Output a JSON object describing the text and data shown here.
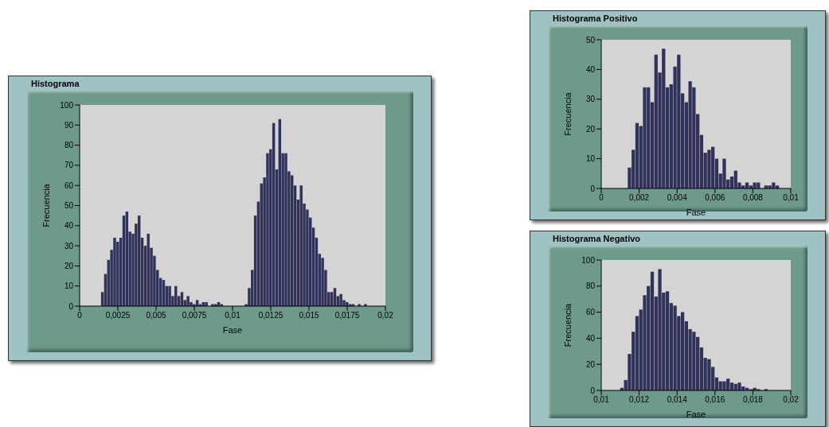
{
  "chart_data": [
    {
      "type": "histogram",
      "title": "Histograma",
      "xlabel": "Fase",
      "ylabel": "Frecuencia",
      "color": "#31325a",
      "bins": [
        0.0014,
        0.0016,
        0.0018,
        0.002,
        0.0022,
        0.0024,
        0.0026,
        0.0028,
        0.003,
        0.0032,
        0.0034,
        0.0036,
        0.0038,
        0.004,
        0.0042,
        0.0044,
        0.0046,
        0.0048,
        0.005,
        0.0052,
        0.0054,
        0.0056,
        0.0058,
        0.006,
        0.0062,
        0.0064,
        0.0066,
        0.0068,
        0.007,
        0.0072,
        0.0074,
        0.0076,
        0.0078,
        0.008,
        0.0082,
        0.0084,
        0.0086,
        0.0088,
        0.009,
        0.0092,
        0.0094,
        0.0096,
        0.0098,
        0.01,
        0.0102,
        0.0104,
        0.0106,
        0.0108,
        0.011,
        0.0112,
        0.0114,
        0.0116,
        0.0118,
        0.012,
        0.0122,
        0.0124,
        0.0126,
        0.0128,
        0.013,
        0.0132,
        0.0134,
        0.0136,
        0.0138,
        0.014,
        0.0142,
        0.0144,
        0.0146,
        0.0148,
        0.015,
        0.0152,
        0.0154,
        0.0156,
        0.0158,
        0.016,
        0.0162,
        0.0164,
        0.0166,
        0.0168,
        0.017,
        0.0172,
        0.0174,
        0.0176,
        0.0178,
        0.018,
        0.0182,
        0.0184,
        0.0186,
        0.0188
      ],
      "values": [
        7,
        16,
        23,
        28,
        34,
        32,
        34,
        45,
        47,
        37,
        36,
        41,
        45,
        34,
        30,
        36,
        29,
        25,
        18,
        14,
        13,
        10,
        10,
        5,
        10,
        5,
        7,
        3,
        5,
        2,
        1,
        3,
        1,
        2,
        2,
        0,
        1,
        1,
        2,
        1,
        0,
        0,
        0,
        0,
        0,
        0,
        0,
        1,
        9,
        18,
        45,
        52,
        61,
        64,
        76,
        78,
        91,
        68,
        93,
        76,
        76,
        67,
        65,
        60,
        53,
        60,
        51,
        48,
        44,
        39,
        34,
        26,
        24,
        18,
        7,
        7,
        9,
        5,
        6,
        3,
        2,
        1,
        1,
        0,
        1,
        0,
        1
      ],
      "xlim": [
        0,
        0.02
      ],
      "xticks": [
        0,
        {
          "value": 0.0025,
          "label": "0,0025"
        },
        {
          "value": 0.005,
          "label": "0,005"
        },
        {
          "value": 0.0075,
          "label": "0,0075"
        },
        {
          "value": 0.01,
          "label": "0,01"
        },
        {
          "value": 0.0125,
          "label": "0,0125"
        },
        {
          "value": 0.015,
          "label": "0,015"
        },
        {
          "value": 0.0175,
          "label": "0,0175"
        },
        {
          "value": 0.02,
          "label": "0,02"
        }
      ],
      "ylim": [
        0,
        100
      ],
      "yticks": [
        0,
        10,
        20,
        30,
        40,
        50,
        60,
        70,
        80,
        90,
        100
      ]
    },
    {
      "type": "histogram",
      "title": "Histograma Positivo",
      "xlabel": "Fase",
      "ylabel": "Frecuencia",
      "color": "#31325a",
      "bins": [
        0.0014,
        0.0016,
        0.0018,
        0.002,
        0.0022,
        0.0024,
        0.0026,
        0.0028,
        0.003,
        0.0032,
        0.0034,
        0.0036,
        0.0038,
        0.004,
        0.0042,
        0.0044,
        0.0046,
        0.0048,
        0.005,
        0.0052,
        0.0054,
        0.0056,
        0.0058,
        0.006,
        0.0062,
        0.0064,
        0.0066,
        0.0068,
        0.007,
        0.0072,
        0.0074,
        0.0076,
        0.0078,
        0.008,
        0.0082,
        0.0084,
        0.0086,
        0.0088,
        0.009,
        0.0092,
        0.0094
      ],
      "values": [
        7,
        13,
        22,
        21,
        34,
        34,
        29,
        45,
        39,
        47,
        34,
        35,
        41,
        45,
        32,
        29,
        36,
        34,
        25,
        18,
        12,
        13,
        14,
        10,
        5,
        10,
        3,
        4,
        6,
        2,
        1,
        2,
        1,
        2,
        2,
        0,
        1,
        1,
        2,
        1
      ],
      "xlim": [
        0,
        0.01
      ],
      "xticks": [
        0,
        {
          "value": 0.002,
          "label": "0,002"
        },
        {
          "value": 0.004,
          "label": "0,004"
        },
        {
          "value": 0.006,
          "label": "0,006"
        },
        {
          "value": 0.008,
          "label": "0,008"
        },
        {
          "value": 0.01,
          "label": "0,01"
        }
      ],
      "ylim": [
        0,
        50
      ],
      "yticks": [
        0,
        10,
        20,
        30,
        40,
        50
      ]
    },
    {
      "type": "histogram",
      "title": "Histograma Negativo",
      "xlabel": "Fase",
      "ylabel": "Frecuencia",
      "color": "#31325a",
      "bins": [
        0.011,
        0.0112,
        0.0114,
        0.0116,
        0.0118,
        0.012,
        0.0122,
        0.0124,
        0.0126,
        0.0128,
        0.013,
        0.0132,
        0.0134,
        0.0136,
        0.0138,
        0.014,
        0.0142,
        0.0144,
        0.0146,
        0.0148,
        0.015,
        0.0152,
        0.0154,
        0.0156,
        0.0158,
        0.016,
        0.0162,
        0.0164,
        0.0166,
        0.0168,
        0.017,
        0.0172,
        0.0174,
        0.0176,
        0.0178,
        0.018,
        0.0182,
        0.0184,
        0.0186,
        0.0188
      ],
      "values": [
        2,
        8,
        28,
        45,
        57,
        62,
        73,
        80,
        91,
        72,
        93,
        75,
        76,
        67,
        65,
        57,
        60,
        53,
        47,
        45,
        41,
        33,
        25,
        24,
        18,
        10,
        7,
        7,
        9,
        6,
        5,
        6,
        3,
        2,
        1,
        2,
        1,
        0,
        1
      ],
      "xlim": [
        0.01,
        0.02
      ],
      "xticks": [
        {
          "value": 0.01,
          "label": "0,01"
        },
        {
          "value": 0.012,
          "label": "0,012"
        },
        {
          "value": 0.014,
          "label": "0,014"
        },
        {
          "value": 0.016,
          "label": "0,016"
        },
        {
          "value": 0.018,
          "label": "0,018"
        },
        {
          "value": 0.02,
          "label": "0,02"
        }
      ],
      "ylim": [
        0,
        100
      ],
      "yticks": [
        0,
        20,
        40,
        60,
        80,
        100
      ]
    }
  ]
}
